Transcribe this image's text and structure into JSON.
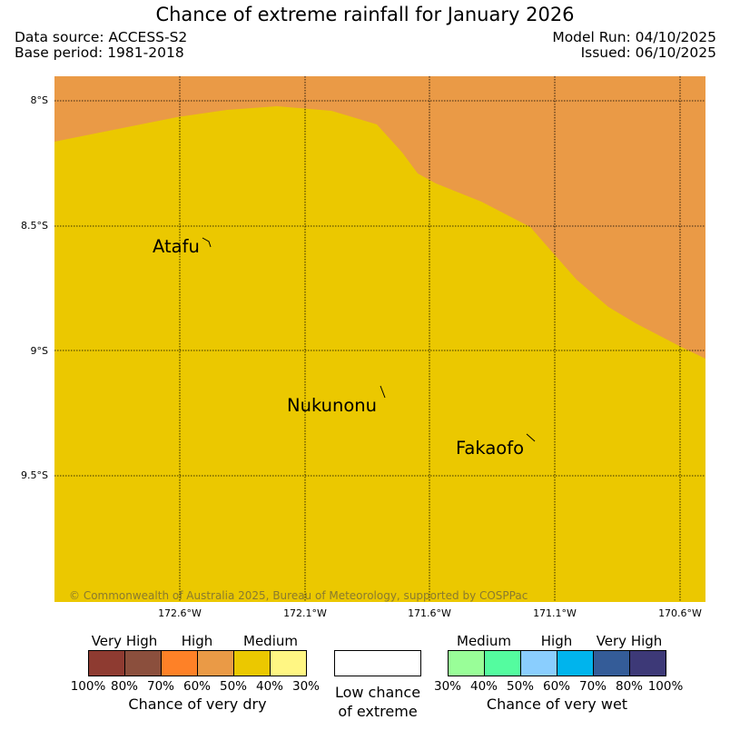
{
  "title": "Chance of extreme rainfall for January 2026",
  "meta": {
    "data_source": "Data source: ACCESS-S2",
    "base_period": "Base period: 1981-2018",
    "model_run": "Model Run: 04/10/2025",
    "issued": "Issued: 06/10/2025"
  },
  "map": {
    "lat_ticks": [
      "8°S",
      "8.5°S",
      "9°S",
      "9.5°S"
    ],
    "lon_ticks": [
      "172.6°W",
      "172.1°W",
      "171.6°W",
      "171.1°W",
      "170.6°W"
    ],
    "places": [
      "Atafu",
      "Nukunonu",
      "Fakaofo"
    ],
    "copyright": "© Commonwealth of Australia 2025, Bureau of Meteorology, supported by COSPPac",
    "colors": {
      "base": "#ebc800",
      "upper": "#ea9a46"
    }
  },
  "legend": {
    "dry": {
      "categories": [
        "Very High",
        "High",
        "Medium"
      ],
      "percentages": [
        "100%",
        "80%",
        "70%",
        "60%",
        "50%",
        "40%",
        "30%"
      ],
      "colors": [
        "#8e3b31",
        "#8b4f3d",
        "#fe8127",
        "#ea9a46",
        "#ebc800",
        "#fff683"
      ],
      "caption": "Chance of very dry"
    },
    "neutral": {
      "caption_line1": "Low chance",
      "caption_line2": "of extreme",
      "color": "#ffffff"
    },
    "wet": {
      "categories": [
        "Medium",
        "High",
        "Very High"
      ],
      "percentages": [
        "30%",
        "40%",
        "50%",
        "60%",
        "70%",
        "80%",
        "100%"
      ],
      "colors": [
        "#99fe98",
        "#54fc9f",
        "#8acefe",
        "#00b4ed",
        "#345c98",
        "#3d3977"
      ],
      "caption": "Chance of very wet"
    }
  }
}
